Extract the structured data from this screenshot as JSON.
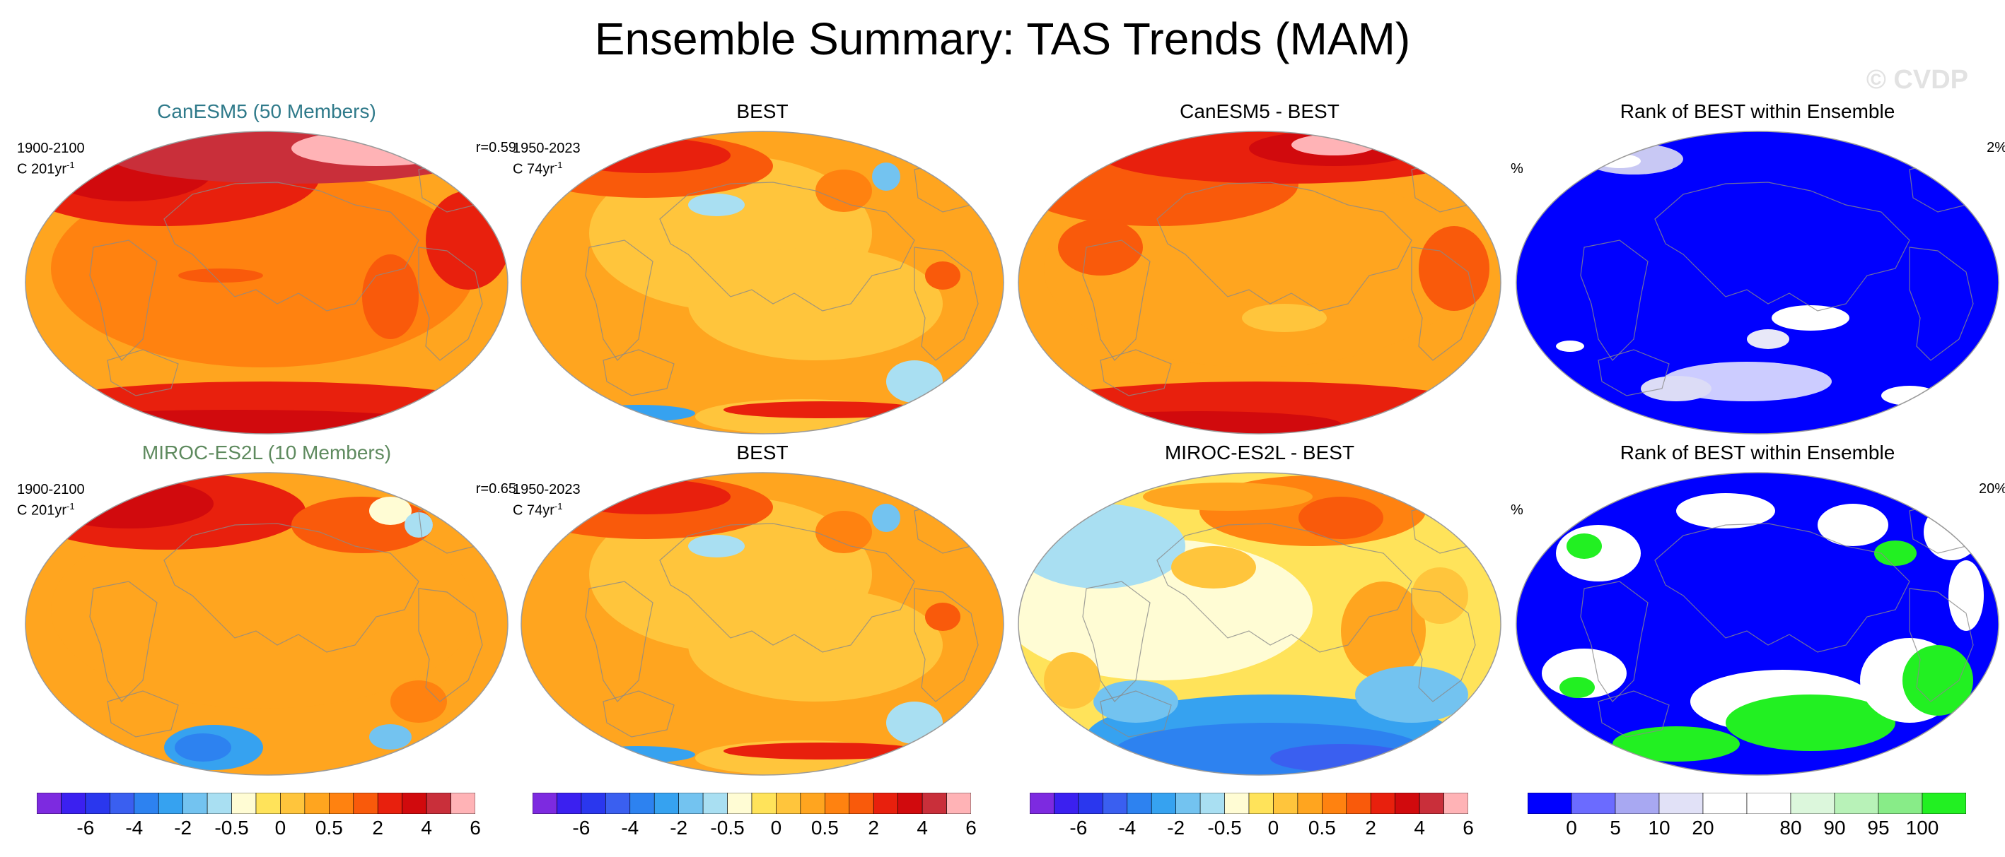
{
  "figure": {
    "title": "Ensemble Summary: TAS Trends (MAM)",
    "watermark": "© CVDP"
  },
  "colors": {
    "trend_scale": [
      "#7d2ae0",
      "#3b20f0",
      "#2a37ee",
      "#3a5ff0",
      "#2d82f0",
      "#36a2f0",
      "#73c3f0",
      "#a9dff2",
      "#fffcd4",
      "#ffe35a",
      "#ffc53c",
      "#ffa51f",
      "#ff8210",
      "#f95a0b",
      "#e8200d",
      "#d10a0d",
      "#c92f3a",
      "#ffb3b6"
    ],
    "rank_scale": [
      "#0000ff",
      "#6b6bff",
      "#a8a8f2",
      "#e1e1f7",
      "#ffffff",
      "#ffffff",
      "#dcf7dc",
      "#b8f2b8",
      "#88ec88",
      "#22f022"
    ]
  },
  "panels": [
    {
      "title": "CanESM5 (50 Members)",
      "title_color": "#2f7a8a",
      "meta_line1": "1900-2100",
      "meta_line2": "C 201yr",
      "meta_sup": "-1",
      "stat": "r=0.59",
      "pct": "",
      "style": "model-a"
    },
    {
      "title": "BEST",
      "title_color": "#000000",
      "meta_line1": "1950-2023",
      "meta_line2": "C 74yr",
      "meta_sup": "-1",
      "stat": "",
      "pct": "",
      "style": "obs"
    },
    {
      "title": "CanESM5 - BEST",
      "title_color": "#000000",
      "meta_line1": "",
      "meta_line2": "",
      "meta_sup": "",
      "stat": "",
      "pct": "",
      "style": "diff-a"
    },
    {
      "title": "Rank of BEST within Ensemble",
      "title_color": "#000000",
      "meta_line1": "",
      "meta_line2": "",
      "meta_sup": "",
      "stat": "2%",
      "pct": "%",
      "style": "rank-a"
    },
    {
      "title": "MIROC-ES2L (10 Members)",
      "title_color": "#5e8a5e",
      "meta_line1": "1900-2100",
      "meta_line2": "C 201yr",
      "meta_sup": "-1",
      "stat": "r=0.65",
      "pct": "",
      "style": "model-b"
    },
    {
      "title": "BEST",
      "title_color": "#000000",
      "meta_line1": "1950-2023",
      "meta_line2": "C 74yr",
      "meta_sup": "-1",
      "stat": "",
      "pct": "",
      "style": "obs"
    },
    {
      "title": "MIROC-ES2L - BEST",
      "title_color": "#000000",
      "meta_line1": "",
      "meta_line2": "",
      "meta_sup": "",
      "stat": "",
      "pct": "",
      "style": "diff-b"
    },
    {
      "title": "Rank of BEST within Ensemble",
      "title_color": "#000000",
      "meta_line1": "",
      "meta_line2": "",
      "meta_sup": "",
      "stat": "20%",
      "pct": "%",
      "style": "rank-b"
    }
  ],
  "colorbars": [
    {
      "type": "trend",
      "labels": [
        "-6",
        "-4",
        "-2",
        "-0.5",
        "0",
        "0.5",
        "2",
        "4",
        "6"
      ]
    },
    {
      "type": "trend",
      "labels": [
        "-6",
        "-4",
        "-2",
        "-0.5",
        "0",
        "0.5",
        "2",
        "4",
        "6"
      ]
    },
    {
      "type": "trend",
      "labels": [
        "-6",
        "-4",
        "-2",
        "-0.5",
        "0",
        "0.5",
        "2",
        "4",
        "6"
      ]
    },
    {
      "type": "rank",
      "labels": [
        "0",
        "5",
        "10",
        "20",
        "80",
        "90",
        "95",
        "100"
      ]
    }
  ],
  "chart_data": [
    {
      "type": "heatmap",
      "title": "CanESM5 (50 Members)",
      "period": "1900-2100",
      "units": "C 201yr-1",
      "stat": "r=0.59"
    },
    {
      "type": "heatmap",
      "title": "BEST",
      "period": "1950-2023",
      "units": "C 74yr-1"
    },
    {
      "type": "heatmap",
      "title": "CanESM5 - BEST"
    },
    {
      "type": "heatmap",
      "title": "Rank of BEST within Ensemble",
      "stat": "2%",
      "units": "%"
    },
    {
      "type": "heatmap",
      "title": "MIROC-ES2L (10 Members)",
      "period": "1900-2100",
      "units": "C 201yr-1",
      "stat": "r=0.65"
    },
    {
      "type": "heatmap",
      "title": "BEST",
      "period": "1950-2023",
      "units": "C 74yr-1"
    },
    {
      "type": "heatmap",
      "title": "MIROC-ES2L - BEST"
    },
    {
      "type": "heatmap",
      "title": "Rank of BEST within Ensemble",
      "stat": "20%",
      "units": "%"
    }
  ]
}
